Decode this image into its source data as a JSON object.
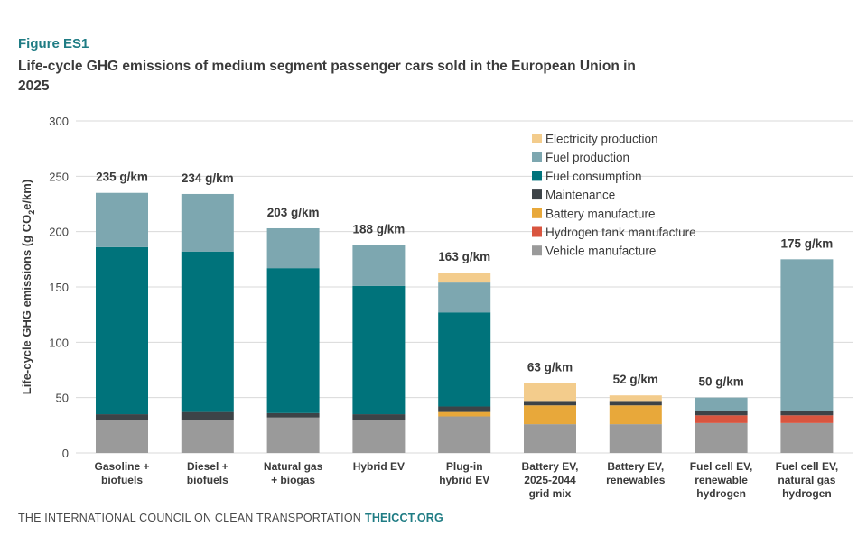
{
  "figure_label": "Figure ES1",
  "title": "Life-cycle GHG emissions of medium segment passenger cars sold in the European Union in 2025",
  "footer": {
    "org": "THE INTERNATIONAL COUNCIL ON CLEAN TRANSPORTATION",
    "site": "THEICCT.ORG"
  },
  "colors": {
    "Vehicle manufacture": "#9a9a9a",
    "Hydrogen tank manufacture": "#d9553f",
    "Battery manufacture": "#e8a83a",
    "Maintenance": "#3d4347",
    "Fuel consumption": "#00737b",
    "Fuel production": "#7da7b0",
    "Electricity production": "#f3cc8c",
    "gridline": "#d9d9d9",
    "axis_text": "#444444"
  },
  "chart_data": {
    "type": "bar",
    "stacked": true,
    "ylabel_parts": [
      "Life-cycle GHG emissions (g CO",
      "2",
      "e/km)"
    ],
    "ylim": [
      0,
      300
    ],
    "yticks": [
      0,
      50,
      100,
      150,
      200,
      250,
      300
    ],
    "grid": true,
    "legend_position": "top-right",
    "categories": [
      [
        "Gasoline +",
        "biofuels"
      ],
      [
        "Diesel +",
        "biofuels"
      ],
      [
        "Natural gas",
        "+ biogas"
      ],
      [
        "Hybrid EV"
      ],
      [
        "Plug-in",
        "hybrid EV"
      ],
      [
        "Battery EV,",
        "2025-2044",
        "grid mix"
      ],
      [
        "Battery EV,",
        "renewables"
      ],
      [
        "Fuel cell EV,",
        "renewable",
        "hydrogen"
      ],
      [
        "Fuel cell EV,",
        "natural gas",
        "hydrogen"
      ]
    ],
    "totals": [
      "235 g/km",
      "234 g/km",
      "203 g/km",
      "188 g/km",
      "163 g/km",
      "63 g/km",
      "52 g/km",
      "50 g/km",
      "175 g/km"
    ],
    "legend": [
      "Electricity production",
      "Fuel production",
      "Fuel consumption",
      "Maintenance",
      "Battery manufacture",
      "Hydrogen tank manufacture",
      "Vehicle manufacture"
    ],
    "series": [
      {
        "name": "Vehicle manufacture",
        "values": [
          30,
          30,
          32,
          30,
          33,
          26,
          26,
          27,
          27
        ]
      },
      {
        "name": "Hydrogen tank manufacture",
        "values": [
          0,
          0,
          0,
          0,
          0,
          0,
          0,
          7,
          7
        ]
      },
      {
        "name": "Battery manufacture",
        "values": [
          0,
          0,
          0,
          0,
          4,
          17,
          17,
          0,
          0
        ]
      },
      {
        "name": "Maintenance",
        "values": [
          5,
          7,
          4,
          5,
          5,
          4,
          4,
          4,
          4
        ]
      },
      {
        "name": "Fuel consumption",
        "values": [
          151,
          145,
          131,
          116,
          85,
          0,
          0,
          0,
          0
        ]
      },
      {
        "name": "Fuel production",
        "values": [
          49,
          52,
          36,
          37,
          27,
          0,
          0,
          12,
          137
        ]
      },
      {
        "name": "Electricity production",
        "values": [
          0,
          0,
          0,
          0,
          9,
          16,
          5,
          0,
          0
        ]
      }
    ]
  }
}
